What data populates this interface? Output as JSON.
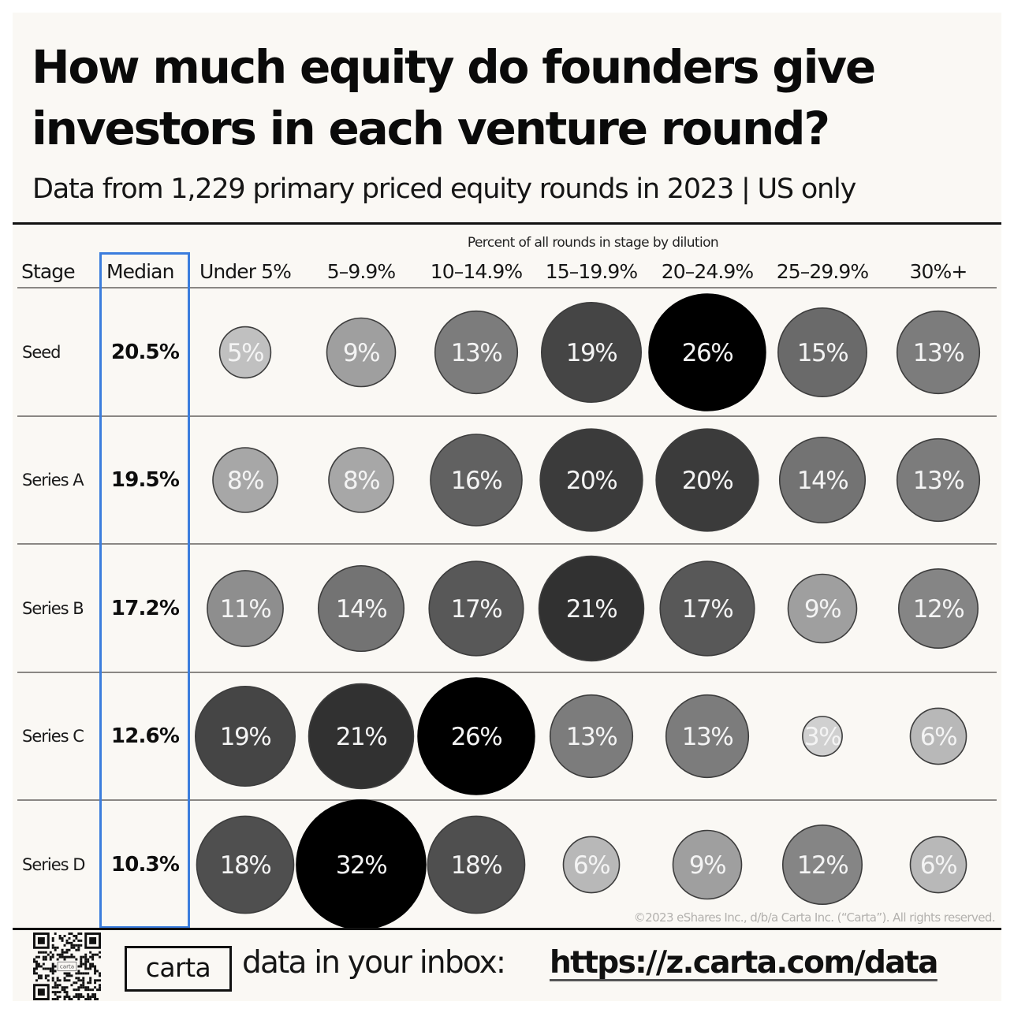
{
  "header": {
    "title": "How much equity do founders give investors in each venture round?",
    "subtitle": "Data from 1,229 primary priced equity rounds in 2023 | US only"
  },
  "table": {
    "axis_label": "Percent of all rounds in stage by dilution",
    "stage_header": "Stage",
    "median_header": "Median",
    "highlight_color": "#3b7ddd"
  },
  "chart_data": {
    "type": "bubble-table",
    "title": "How much equity do founders give investors in each venture round?",
    "subtitle": "Data from 1,229 primary priced equity rounds in 2023 | US only",
    "xlabel": "Percent of all rounds in stage by dilution",
    "categories": [
      "Under 5%",
      "5–9.9%",
      "10–14.9%",
      "15–19.9%",
      "20–24.9%",
      "25–29.9%",
      "30%+"
    ],
    "value_unit": "%",
    "color_scale": {
      "low": "#d2d2d2",
      "high": "#000000"
    },
    "rows": [
      {
        "stage": "Seed",
        "median": "20.5%",
        "values": [
          5,
          9,
          13,
          19,
          26,
          15,
          13
        ]
      },
      {
        "stage": "Series A",
        "median": "19.5%",
        "values": [
          8,
          8,
          16,
          20,
          20,
          14,
          13
        ]
      },
      {
        "stage": "Series B",
        "median": "17.2%",
        "values": [
          11,
          14,
          17,
          21,
          17,
          9,
          12
        ]
      },
      {
        "stage": "Series C",
        "median": "12.6%",
        "values": [
          19,
          21,
          26,
          13,
          13,
          3,
          6
        ]
      },
      {
        "stage": "Series D",
        "median": "10.3%",
        "values": [
          18,
          32,
          18,
          6,
          9,
          12,
          6
        ]
      }
    ]
  },
  "footer": {
    "copyright": "©2023 eShares Inc., d/b/a Carta Inc. (“Carta”). All rights reserved.",
    "logo": "carta",
    "qr_logo": "carta",
    "qr_icon": "qr-code-icon",
    "inbox_text": "data in your inbox:",
    "url": "https://z.carta.com/data"
  }
}
